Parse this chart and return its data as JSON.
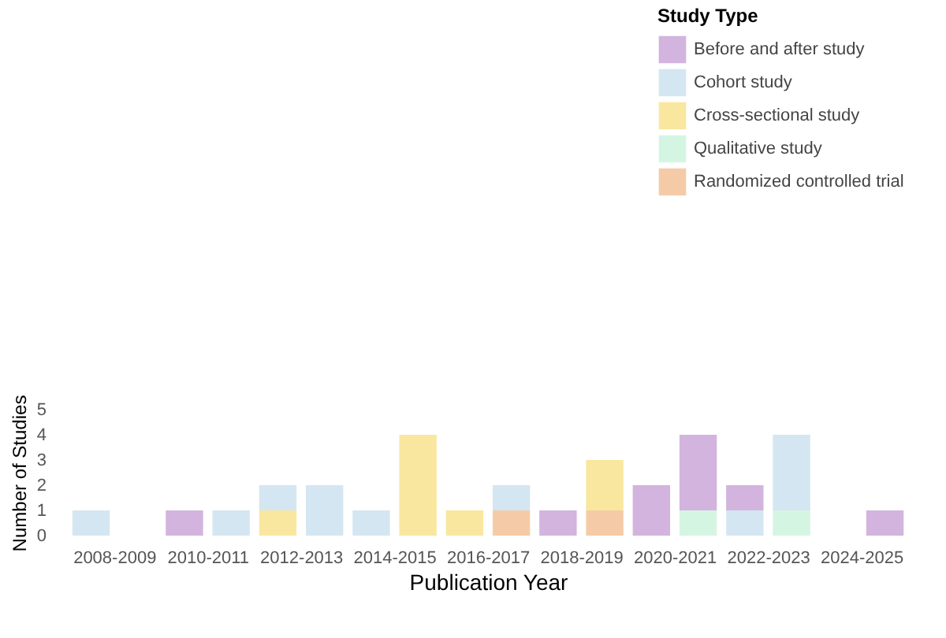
{
  "chart_data": {
    "type": "bar",
    "stacked": true,
    "xlabel": "Publication Year",
    "ylabel": "Number of Studies",
    "legend_title": "Study Type",
    "legend": "top right",
    "grid": false,
    "categories": [
      "2008-2009",
      null,
      "2010-2011",
      null,
      "2012-2013",
      null,
      "2014-2015",
      null,
      "2016-2017",
      null,
      "2018-2019",
      null,
      "2020-2021",
      null,
      "2022-2023",
      null,
      "2024-2025",
      null
    ],
    "ylim": [
      0,
      5
    ],
    "yticks": [
      0,
      1,
      2,
      3,
      4,
      5
    ],
    "series": [
      {
        "name": "Randomized controlled trial",
        "color": "#f5cba7",
        "values": [
          0,
          0,
          0,
          0,
          0,
          0,
          0,
          0,
          0,
          1,
          0,
          1,
          0,
          0,
          0,
          0,
          0,
          0
        ]
      },
      {
        "name": "Qualitative study",
        "color": "#d5f5e3",
        "values": [
          0,
          0,
          0,
          0,
          0,
          0,
          0,
          0,
          0,
          0,
          0,
          0,
          0,
          1,
          0,
          1,
          0,
          0
        ]
      },
      {
        "name": "Cross-sectional study",
        "color": "#f9e79f",
        "values": [
          0,
          0,
          0,
          0,
          1,
          0,
          0,
          4,
          1,
          0,
          0,
          2,
          0,
          0,
          0,
          0,
          0,
          0
        ]
      },
      {
        "name": "Cohort study",
        "color": "#d4e6f1",
        "values": [
          1,
          0,
          0,
          1,
          1,
          2,
          1,
          0,
          0,
          1,
          0,
          0,
          0,
          0,
          1,
          3,
          0,
          0
        ]
      },
      {
        "name": "Before and after study",
        "color": "#d2b4de",
        "values": [
          0,
          0,
          1,
          0,
          0,
          0,
          0,
          0,
          0,
          0,
          1,
          0,
          2,
          3,
          1,
          0,
          0,
          1
        ]
      }
    ]
  }
}
